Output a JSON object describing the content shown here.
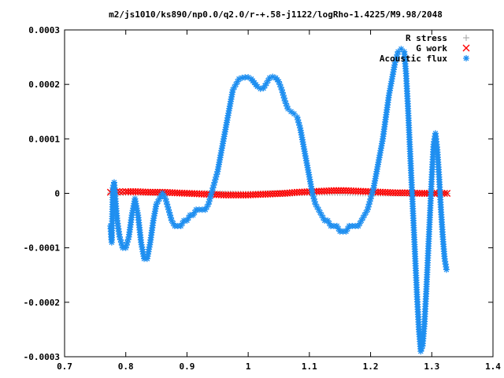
{
  "chart_data": {
    "type": "scatter",
    "title": "m2/js1010/ks890/np0.0/q2.0/r-+.58-j1122/logRho-1.4225/M9.98/2048",
    "xlabel": "",
    "ylabel": "",
    "xlim": [
      0.7,
      1.4
    ],
    "ylim": [
      -0.0003,
      0.0003
    ],
    "x_ticks": [
      "0.7",
      "0.8",
      "0.9",
      "1",
      "1.1",
      "1.2",
      "1.3",
      "1.4"
    ],
    "y_ticks": [
      "-0.0003",
      "-0.0002",
      "-0.0001",
      "0",
      "0.0001",
      "0.0002",
      "0.0003"
    ],
    "grid": false,
    "legend_position": "top-right",
    "series": [
      {
        "name": "R stress",
        "marker": "+",
        "color": "#a0a0a0",
        "points": [
          [
            0.775,
            5e-07
          ],
          [
            0.8,
            1e-06
          ],
          [
            0.85,
            1e-06
          ],
          [
            0.9,
            5e-07
          ],
          [
            0.95,
            -5e-07
          ],
          [
            1.0,
            -1e-06
          ],
          [
            1.05,
            0.0
          ],
          [
            1.1,
            1e-06
          ],
          [
            1.15,
            1e-06
          ],
          [
            1.2,
            0.0
          ],
          [
            1.25,
            0.0
          ],
          [
            1.3,
            0.0
          ],
          [
            1.325,
            0.0
          ]
        ]
      },
      {
        "name": "G work",
        "marker": "x",
        "color": "#ff0000",
        "points": [
          [
            0.775,
            2e-06
          ],
          [
            0.79,
            3e-06
          ],
          [
            0.8,
            3e-06
          ],
          [
            0.82,
            3e-06
          ],
          [
            0.84,
            2e-06
          ],
          [
            0.86,
            2e-06
          ],
          [
            0.88,
            1e-06
          ],
          [
            0.9,
            0.0
          ],
          [
            0.92,
            -1e-06
          ],
          [
            0.94,
            -2e-06
          ],
          [
            0.96,
            -3e-06
          ],
          [
            0.98,
            -3e-06
          ],
          [
            1.0,
            -3e-06
          ],
          [
            1.02,
            -2e-06
          ],
          [
            1.04,
            -1e-06
          ],
          [
            1.06,
            0.0
          ],
          [
            1.08,
            2e-06
          ],
          [
            1.1,
            3e-06
          ],
          [
            1.12,
            4e-06
          ],
          [
            1.14,
            5e-06
          ],
          [
            1.16,
            5e-06
          ],
          [
            1.18,
            4e-06
          ],
          [
            1.2,
            3e-06
          ],
          [
            1.22,
            2e-06
          ],
          [
            1.24,
            1e-06
          ],
          [
            1.26,
            1e-06
          ],
          [
            1.28,
            0.0
          ],
          [
            1.3,
            0.0
          ],
          [
            1.325,
            0.0
          ]
        ]
      },
      {
        "name": "Acoustic flux",
        "marker": "*",
        "color": "#1f8ff0",
        "points": [
          [
            0.775,
            -6e-05
          ],
          [
            0.777,
            -9e-05
          ],
          [
            0.779,
            1e-05
          ],
          [
            0.781,
            2e-05
          ],
          [
            0.783,
            -1e-05
          ],
          [
            0.786,
            -5e-05
          ],
          [
            0.79,
            -8e-05
          ],
          [
            0.795,
            -0.0001
          ],
          [
            0.8,
            -0.0001
          ],
          [
            0.805,
            -8e-05
          ],
          [
            0.81,
            -4e-05
          ],
          [
            0.815,
            -1e-05
          ],
          [
            0.82,
            -4e-05
          ],
          [
            0.825,
            -9e-05
          ],
          [
            0.83,
            -0.00012
          ],
          [
            0.835,
            -0.00012
          ],
          [
            0.84,
            -9e-05
          ],
          [
            0.845,
            -5e-05
          ],
          [
            0.85,
            -2e-05
          ],
          [
            0.855,
            -1e-05
          ],
          [
            0.86,
            0.0
          ],
          [
            0.865,
            -1e-05
          ],
          [
            0.87,
            -3e-05
          ],
          [
            0.875,
            -5e-05
          ],
          [
            0.88,
            -6e-05
          ],
          [
            0.885,
            -6e-05
          ],
          [
            0.89,
            -6e-05
          ],
          [
            0.895,
            -5e-05
          ],
          [
            0.9,
            -5e-05
          ],
          [
            0.905,
            -4e-05
          ],
          [
            0.91,
            -4e-05
          ],
          [
            0.915,
            -3e-05
          ],
          [
            0.92,
            -3e-05
          ],
          [
            0.925,
            -3e-05
          ],
          [
            0.93,
            -3e-05
          ],
          [
            0.935,
            -2e-05
          ],
          [
            0.94,
            0.0
          ],
          [
            0.945,
            2e-05
          ],
          [
            0.95,
            4e-05
          ],
          [
            0.955,
            7e-05
          ],
          [
            0.96,
            0.0001
          ],
          [
            0.965,
            0.00013
          ],
          [
            0.97,
            0.00016
          ],
          [
            0.975,
            0.00019
          ],
          [
            0.98,
            0.0002
          ],
          [
            0.985,
            0.00021
          ],
          [
            0.99,
            0.000212
          ],
          [
            0.995,
            0.000213
          ],
          [
            1.0,
            0.000213
          ],
          [
            1.005,
            0.00021
          ],
          [
            1.01,
            0.000203
          ],
          [
            1.015,
            0.000196
          ],
          [
            1.02,
            0.000192
          ],
          [
            1.025,
            0.000193
          ],
          [
            1.03,
            0.000202
          ],
          [
            1.035,
            0.000212
          ],
          [
            1.04,
            0.000214
          ],
          [
            1.045,
            0.000212
          ],
          [
            1.05,
            0.000205
          ],
          [
            1.055,
            0.00019
          ],
          [
            1.06,
            0.00017
          ],
          [
            1.065,
            0.000155
          ],
          [
            1.07,
            0.00015
          ],
          [
            1.075,
            0.000146
          ],
          [
            1.08,
            0.00014
          ],
          [
            1.085,
            0.00012
          ],
          [
            1.09,
            9e-05
          ],
          [
            1.095,
            6e-05
          ],
          [
            1.1,
            3e-05
          ],
          [
            1.105,
            0.0
          ],
          [
            1.11,
            -2e-05
          ],
          [
            1.115,
            -3e-05
          ],
          [
            1.12,
            -4e-05
          ],
          [
            1.125,
            -5e-05
          ],
          [
            1.13,
            -5e-05
          ],
          [
            1.135,
            -6e-05
          ],
          [
            1.14,
            -6e-05
          ],
          [
            1.145,
            -6e-05
          ],
          [
            1.15,
            -7e-05
          ],
          [
            1.155,
            -7e-05
          ],
          [
            1.16,
            -7e-05
          ],
          [
            1.165,
            -6e-05
          ],
          [
            1.17,
            -6e-05
          ],
          [
            1.175,
            -6e-05
          ],
          [
            1.18,
            -6e-05
          ],
          [
            1.185,
            -5e-05
          ],
          [
            1.19,
            -4e-05
          ],
          [
            1.195,
            -3e-05
          ],
          [
            1.2,
            -1e-05
          ],
          [
            1.205,
            1e-05
          ],
          [
            1.21,
            4e-05
          ],
          [
            1.215,
            7e-05
          ],
          [
            1.22,
            0.0001
          ],
          [
            1.225,
            0.00014
          ],
          [
            1.23,
            0.00018
          ],
          [
            1.235,
            0.00021
          ],
          [
            1.24,
            0.00024
          ],
          [
            1.245,
            0.00026
          ],
          [
            1.25,
            0.000265
          ],
          [
            1.255,
            0.00026
          ],
          [
            1.258,
            0.00022
          ],
          [
            1.261,
            0.00016
          ],
          [
            1.264,
            9e-05
          ],
          [
            1.267,
            2e-05
          ],
          [
            1.27,
            -5e-05
          ],
          [
            1.273,
            -0.00012
          ],
          [
            1.276,
            -0.00019
          ],
          [
            1.279,
            -0.00025
          ],
          [
            1.282,
            -0.00029
          ],
          [
            1.285,
            -0.00028
          ],
          [
            1.288,
            -0.00024
          ],
          [
            1.291,
            -0.00018
          ],
          [
            1.294,
            -0.00011
          ],
          [
            1.297,
            -4e-05
          ],
          [
            1.3,
            3e-05
          ],
          [
            1.303,
            9e-05
          ],
          [
            1.306,
            0.00011
          ],
          [
            1.309,
            8e-05
          ],
          [
            1.312,
            3e-05
          ],
          [
            1.315,
            -3e-05
          ],
          [
            1.318,
            -8e-05
          ],
          [
            1.321,
            -0.00012
          ],
          [
            1.324,
            -0.00014
          ]
        ]
      }
    ]
  }
}
